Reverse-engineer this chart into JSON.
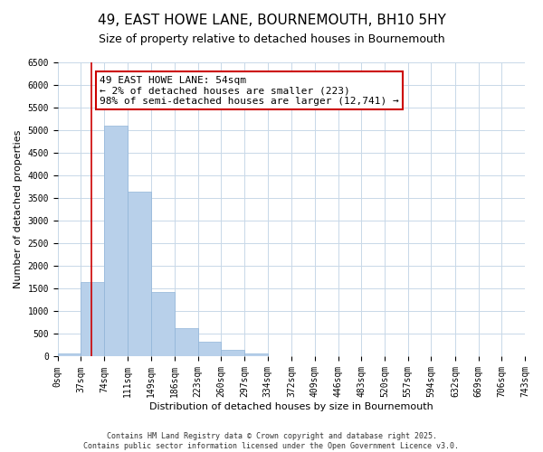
{
  "title": "49, EAST HOWE LANE, BOURNEMOUTH, BH10 5HY",
  "subtitle": "Size of property relative to detached houses in Bournemouth",
  "xlabel": "Distribution of detached houses by size in Bournemouth",
  "ylabel": "Number of detached properties",
  "bar_edges": [
    0,
    37,
    74,
    111,
    149,
    186,
    223,
    260,
    297,
    334,
    372,
    409,
    446,
    483,
    520,
    557,
    594,
    632,
    669,
    706,
    743
  ],
  "bar_heights": [
    60,
    1650,
    5100,
    3650,
    1430,
    620,
    320,
    150,
    60,
    10,
    0,
    0,
    0,
    0,
    0,
    0,
    0,
    0,
    0,
    0
  ],
  "bar_color": "#b8d0ea",
  "bar_edgecolor": "#90b4d8",
  "property_line_x": 54,
  "property_line_color": "#cc0000",
  "annotation_line1": "49 EAST HOWE LANE: 54sqm",
  "annotation_line2": "← 2% of detached houses are smaller (223)",
  "annotation_line3": "98% of semi-detached houses are larger (12,741) →",
  "annotation_box_color": "#cc0000",
  "ylim": [
    0,
    6500
  ],
  "yticks": [
    0,
    500,
    1000,
    1500,
    2000,
    2500,
    3000,
    3500,
    4000,
    4500,
    5000,
    5500,
    6000,
    6500
  ],
  "xtick_labels": [
    "0sqm",
    "37sqm",
    "74sqm",
    "111sqm",
    "149sqm",
    "186sqm",
    "223sqm",
    "260sqm",
    "297sqm",
    "334sqm",
    "372sqm",
    "409sqm",
    "446sqm",
    "483sqm",
    "520sqm",
    "557sqm",
    "594sqm",
    "632sqm",
    "669sqm",
    "706sqm",
    "743sqm"
  ],
  "footer1": "Contains HM Land Registry data © Crown copyright and database right 2025.",
  "footer2": "Contains public sector information licensed under the Open Government Licence v3.0.",
  "background_color": "#ffffff",
  "grid_color": "#c8d8e8",
  "title_fontsize": 11,
  "subtitle_fontsize": 9,
  "axis_label_fontsize": 8,
  "tick_fontsize": 7,
  "annotation_fontsize": 8,
  "footer_fontsize": 6
}
